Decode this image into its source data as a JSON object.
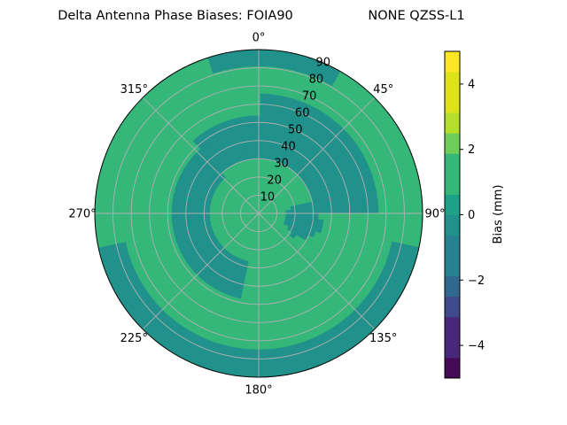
{
  "chart_data": {
    "type": "polar-contour",
    "title": "Delta Antenna Phase Biases: FOIA90",
    "subtitle": "NONE QZSS-L1",
    "azimuth_ticks": [
      "0°",
      "45°",
      "90°",
      "135°",
      "180°",
      "225°",
      "270°",
      "315°"
    ],
    "radial_ticks": [
      "10",
      "20",
      "30",
      "40",
      "50",
      "60",
      "70",
      "80",
      "90"
    ],
    "radial_range": [
      0,
      90
    ],
    "grid": true,
    "colorbar": {
      "label": "Bias (mm)",
      "range": [
        -5,
        5
      ],
      "ticks": [
        "−4",
        "−2",
        "0",
        "2",
        "4"
      ],
      "tick_values": [
        -4,
        -2,
        0,
        2,
        4
      ],
      "levels": [
        -5,
        -4.375,
        -3.75,
        -3.125,
        -2.5,
        -1.875,
        -1.25,
        -0.625,
        0,
        0.625,
        1.25,
        1.875,
        2.5,
        3.125,
        3.75,
        4.375,
        5
      ],
      "colors": [
        "#440154",
        "#46327e",
        "#365c8d",
        "#277f8e",
        "#1fa187",
        "#4ac16d",
        "#a0da39",
        "#fde725"
      ],
      "band_colors": [
        "#450b57",
        "#482979",
        "#3e4a89",
        "#31688e",
        "#26828e",
        "#21918c",
        "#1fa188",
        "#35b779",
        "#6ece58",
        "#b5de2b",
        "#dde318",
        "#fde725"
      ]
    },
    "bias_field": {
      "base": 0.9,
      "regions": [
        {
          "type": "ring",
          "r_min": 28,
          "r_max": 48,
          "az_min": 190,
          "az_max": 320,
          "value": -0.2
        },
        {
          "type": "ring",
          "r_min": 30,
          "r_max": 55,
          "az_min": 320,
          "az_max": 360,
          "value": -0.3
        },
        {
          "type": "ring",
          "r_min": 30,
          "r_max": 65,
          "az_min": 0,
          "az_max": 90,
          "value": -0.3
        },
        {
          "type": "blob",
          "az": 100,
          "r": 25,
          "size": 10,
          "value": -0.2
        },
        {
          "type": "blob",
          "az": 320,
          "r": 70,
          "size": 14,
          "value": 1.6
        },
        {
          "type": "blob",
          "az": 45,
          "r": 85,
          "size": 8,
          "value": 1.5
        },
        {
          "type": "ring",
          "r_min": 75,
          "r_max": 90,
          "az_min": 100,
          "az_max": 260,
          "value": -0.3
        },
        {
          "type": "ring",
          "r_min": 82,
          "r_max": 90,
          "az_min": 340,
          "az_max": 30,
          "value": -0.2
        }
      ]
    }
  }
}
